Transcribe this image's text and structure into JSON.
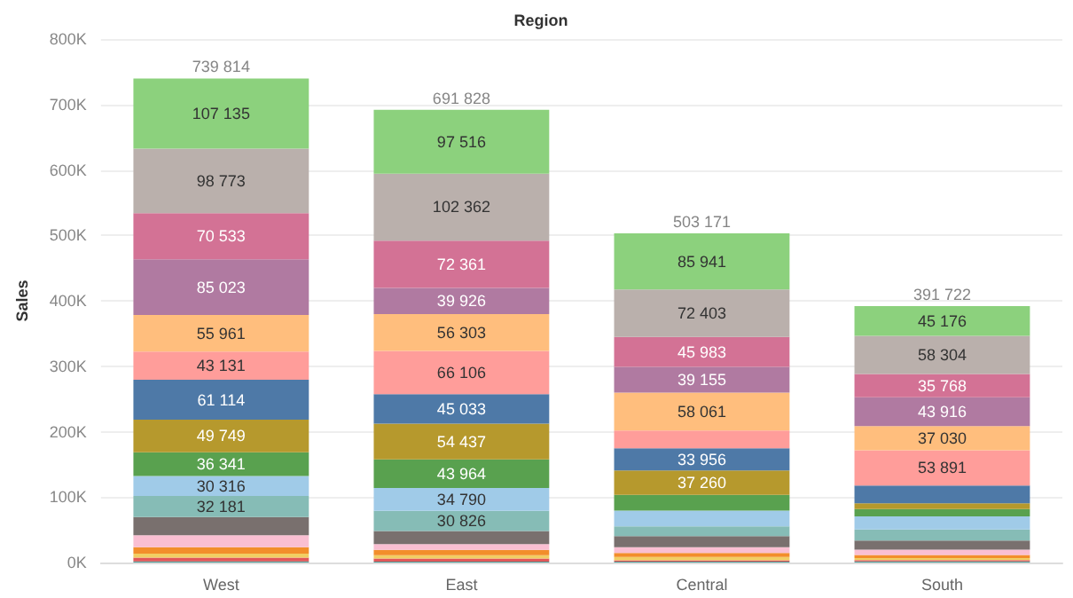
{
  "chart_data": {
    "type": "bar",
    "stacked": true,
    "title": "Region",
    "ylabel": "Sales",
    "categories": [
      "West",
      "East",
      "Central",
      "South"
    ],
    "ylim": [
      0,
      800000
    ],
    "yticks": [
      {
        "value": 0,
        "label": "0K"
      },
      {
        "value": 100000,
        "label": "100K"
      },
      {
        "value": 200000,
        "label": "200K"
      },
      {
        "value": 300000,
        "label": "300K"
      },
      {
        "value": 400000,
        "label": "400K"
      },
      {
        "value": 500000,
        "label": "500K"
      },
      {
        "value": 600000,
        "label": "600K"
      },
      {
        "value": 700000,
        "label": "700K"
      },
      {
        "value": 800000,
        "label": "800K"
      }
    ],
    "grid": "y",
    "totals": [
      "739 814",
      "691 828",
      "503 171",
      "391 722"
    ],
    "series": [
      {
        "color": "#499894",
        "values": [
          1557,
          1204,
          1412,
          1637
        ],
        "value_labels": [
          null,
          null,
          null,
          null
        ]
      },
      {
        "color": "#e15759",
        "values": [
          6000,
          5000,
          2000,
          2000
        ],
        "value_labels": [
          null,
          null,
          null,
          null
        ]
      },
      {
        "color": "#f1ce63",
        "values": [
          6000,
          5000,
          5000,
          3000
        ],
        "value_labels": [
          null,
          null,
          null,
          null
        ]
      },
      {
        "color": "#f28e2b",
        "values": [
          10000,
          8000,
          6000,
          5000
        ],
        "value_labels": [
          null,
          null,
          null,
          null
        ]
      },
      {
        "color": "#fabfd2",
        "values": [
          18000,
          9000,
          9000,
          8000
        ],
        "value_labels": [
          null,
          null,
          null,
          null
        ]
      },
      {
        "color": "#79706e",
        "values": [
          28000,
          20000,
          17000,
          14000
        ],
        "value_labels": [
          null,
          null,
          null,
          null
        ]
      },
      {
        "color": "#86bcb6",
        "values": [
          32181,
          30826,
          15000,
          17000
        ],
        "value_labels": [
          "32 181",
          "30 826",
          null,
          null
        ]
      },
      {
        "color": "#a0cbe8",
        "values": [
          30316,
          34790,
          24000,
          20000
        ],
        "value_labels": [
          "30 316",
          "34 790",
          null,
          null
        ]
      },
      {
        "color": "#59a14f",
        "values": [
          36341,
          43964,
          24000,
          11000
        ],
        "value_labels": [
          "36 341",
          "43 964",
          null,
          null
        ]
      },
      {
        "color": "#b6992d",
        "values": [
          49749,
          54437,
          37260,
          9000
        ],
        "value_labels": [
          "49 749",
          "54 437",
          "37 260",
          null
        ]
      },
      {
        "color": "#4e79a7",
        "values": [
          61114,
          45033,
          33956,
          27000
        ],
        "value_labels": [
          "61 114",
          "45 033",
          "33 956",
          null
        ]
      },
      {
        "color": "#ff9d9a",
        "values": [
          43131,
          66106,
          27000,
          53891
        ],
        "value_labels": [
          "43 131",
          "66 106",
          null,
          "53 891"
        ]
      },
      {
        "color": "#ffbe7d",
        "values": [
          55961,
          56303,
          58061,
          37030
        ],
        "value_labels": [
          "55 961",
          "56 303",
          "58 061",
          "37 030"
        ]
      },
      {
        "color": "#b07aa1",
        "values": [
          85023,
          39926,
          39155,
          43916
        ],
        "value_labels": [
          "85 023",
          "39 926",
          "39 155",
          "43 916"
        ]
      },
      {
        "color": "#d37295",
        "values": [
          70533,
          72361,
          45983,
          35768
        ],
        "value_labels": [
          "70 533",
          "72 361",
          "45 983",
          "35 768"
        ]
      },
      {
        "color": "#bab0ac",
        "values": [
          98773,
          102362,
          72403,
          58304
        ],
        "value_labels": [
          "98 773",
          "102 362",
          "72 403",
          "58 304"
        ]
      },
      {
        "color": "#8cd17d",
        "values": [
          107135,
          97516,
          85941,
          45176
        ],
        "value_labels": [
          "107 135",
          "97 516",
          "85 941",
          "45 176"
        ]
      }
    ]
  }
}
